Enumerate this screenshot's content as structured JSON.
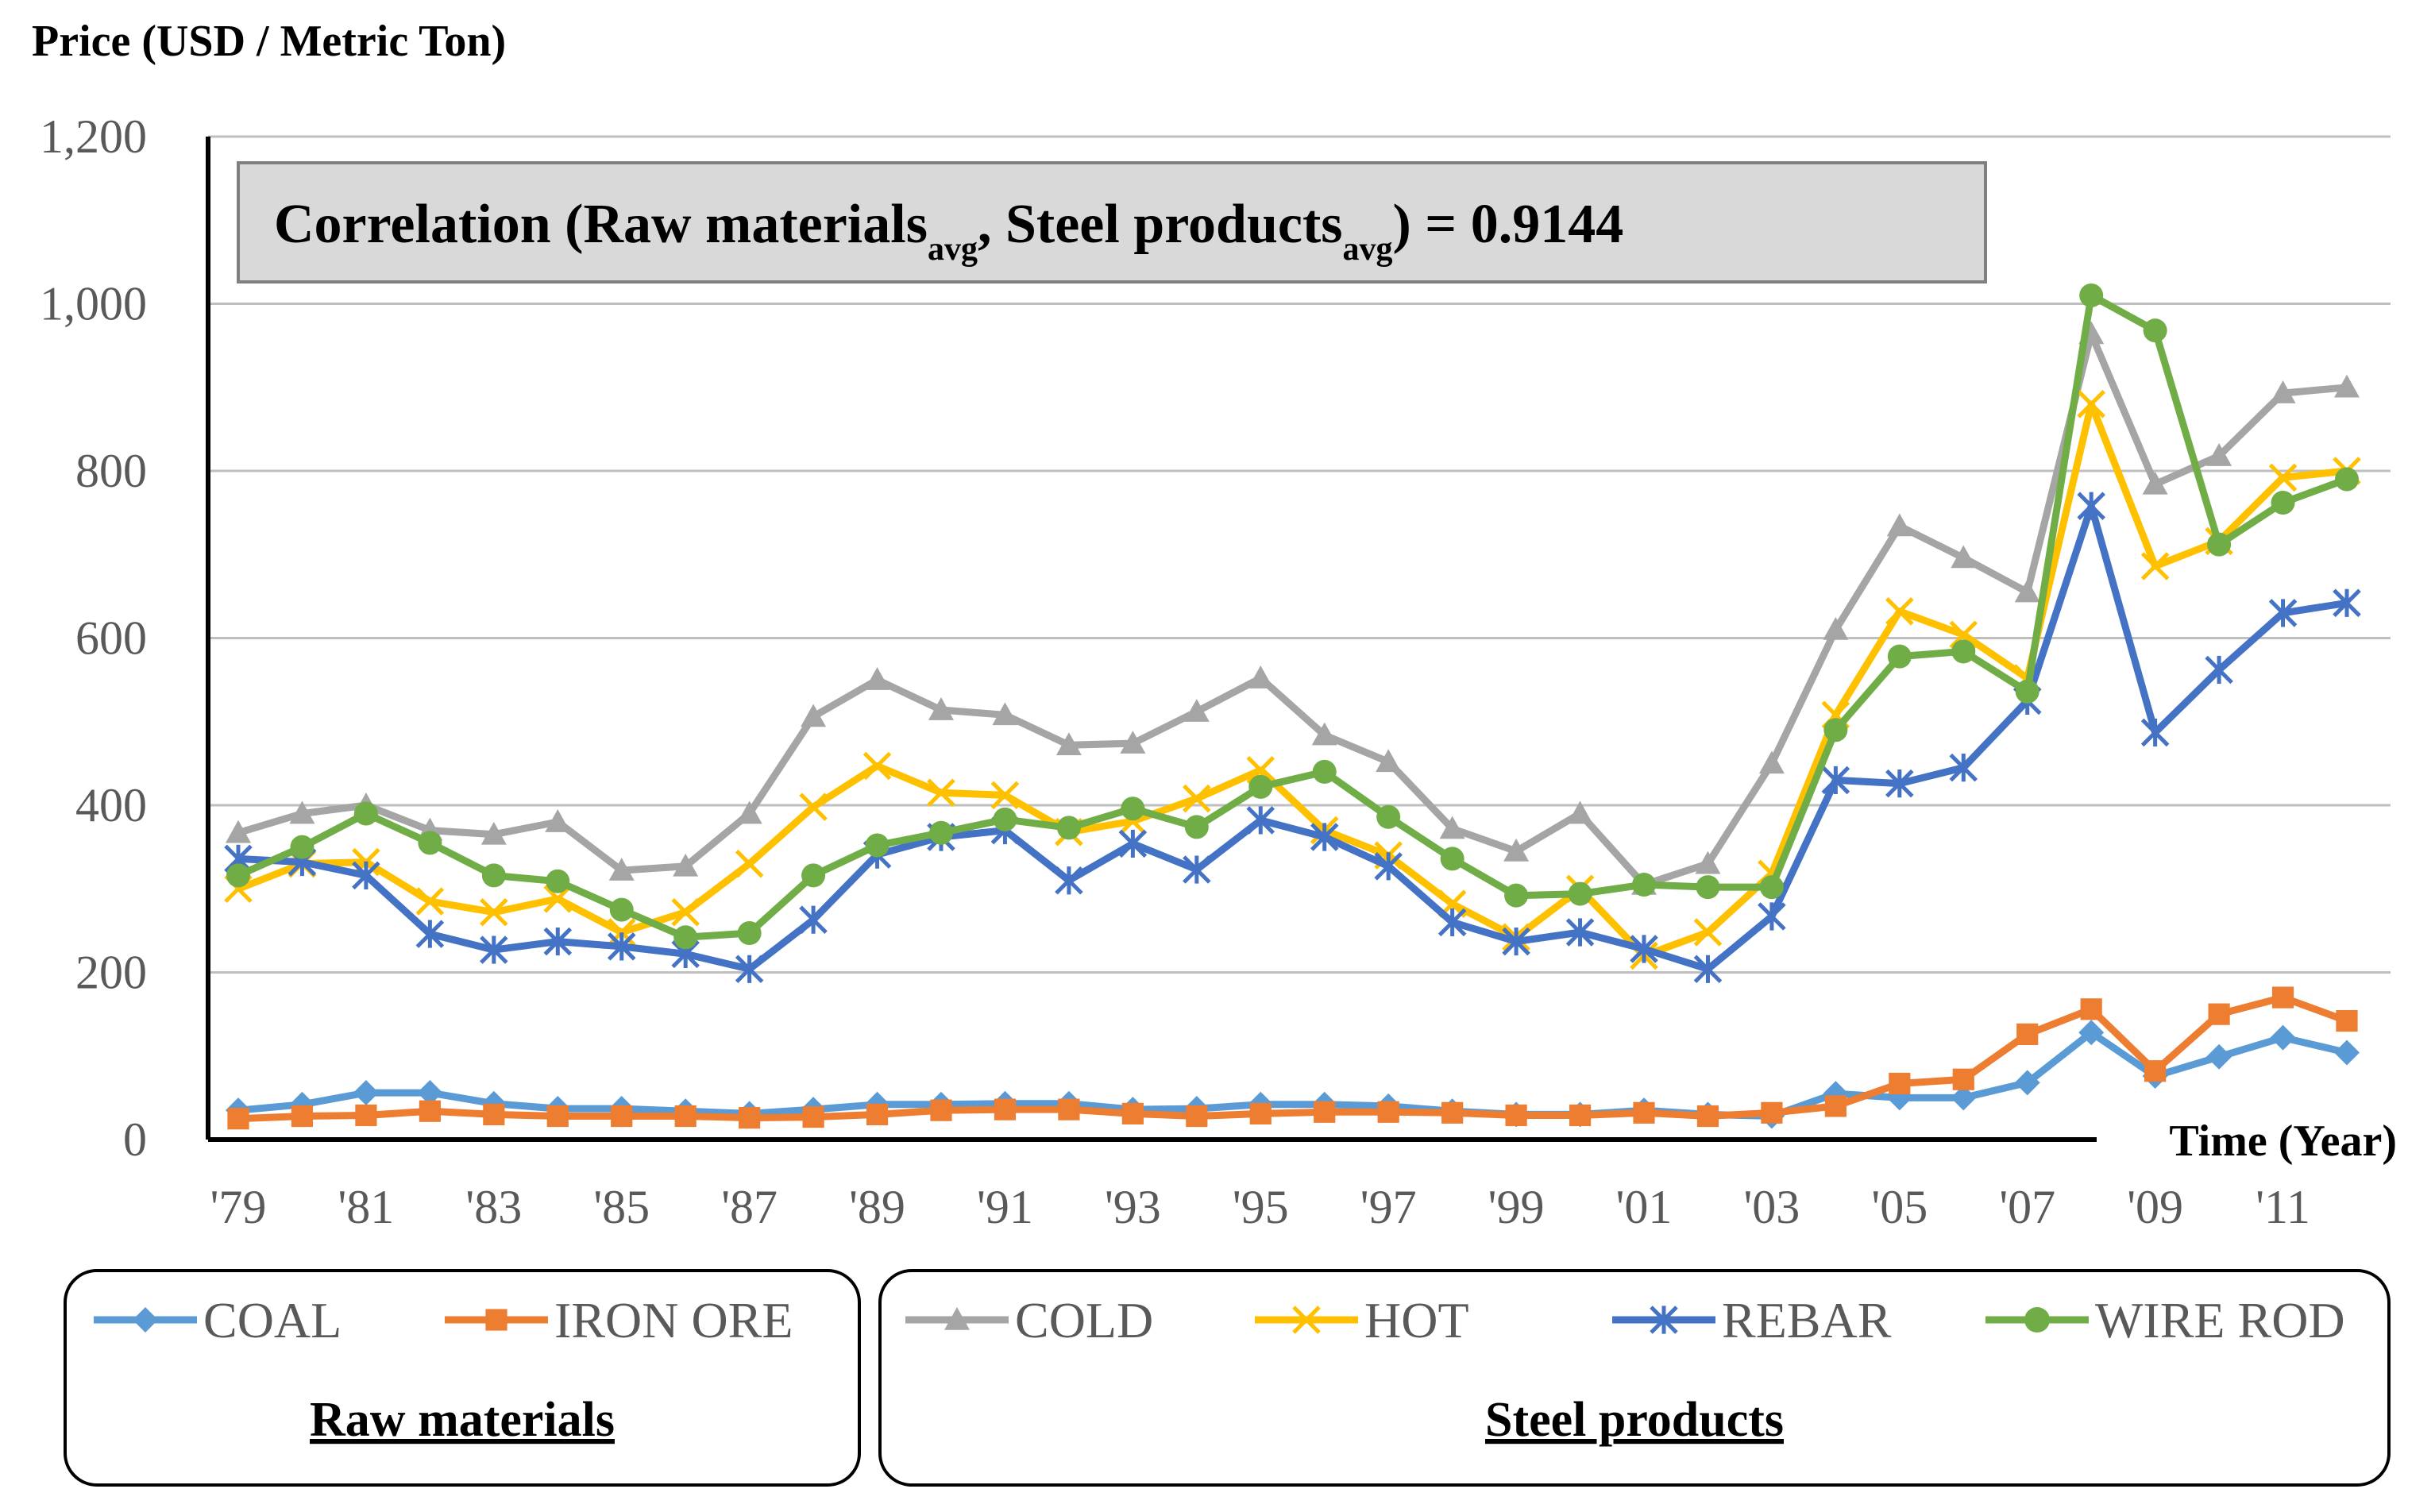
{
  "chart_data": {
    "type": "line",
    "ylabel": "Price (USD / Metric Ton)",
    "xlabel": "Time (Year)",
    "ylim": [
      0,
      1200
    ],
    "yticks": [
      0,
      200,
      400,
      600,
      800,
      1000,
      1200
    ],
    "ytick_labels": [
      "0",
      "200",
      "400",
      "600",
      "800",
      "1,000",
      "1,200"
    ],
    "x": [
      1979,
      1980,
      1981,
      1982,
      1983,
      1984,
      1985,
      1986,
      1987,
      1988,
      1989,
      1990,
      1991,
      1992,
      1993,
      1994,
      1995,
      1996,
      1997,
      1998,
      1999,
      2000,
      2001,
      2002,
      2003,
      2004,
      2005,
      2006,
      2007,
      2008,
      2009,
      2010,
      2011,
      2012
    ],
    "xtick_labels": [
      "'79",
      "'81",
      "'83",
      "'85",
      "'87",
      "'89",
      "'91",
      "'93",
      "'95",
      "'97",
      "'99",
      "'01",
      "'03",
      "'05",
      "'07",
      "'09",
      "'11"
    ],
    "grid": true,
    "correlation": {
      "prefix": "Correlation  (Raw materials",
      "sub1": "avg",
      "mid": ", Steel products",
      "sub2": "avg",
      "suffix": ") = 0.9144"
    },
    "series": [
      {
        "name": "COAL",
        "group": "raw",
        "color": "#5B9BD5",
        "marker": "diamond",
        "values": [
          35,
          42,
          56,
          56,
          43,
          37,
          37,
          34,
          31,
          36,
          42,
          42,
          43,
          43,
          36,
          37,
          42,
          42,
          40,
          34,
          30,
          30,
          35,
          30,
          28,
          55,
          50,
          50,
          68,
          128,
          76,
          99,
          122,
          104
        ]
      },
      {
        "name": "IRON ORE",
        "group": "raw",
        "color": "#ED7D31",
        "marker": "square",
        "values": [
          25,
          28,
          29,
          34,
          30,
          28,
          28,
          28,
          26,
          27,
          30,
          35,
          36,
          36,
          31,
          28,
          31,
          33,
          33,
          32,
          29,
          29,
          32,
          28,
          32,
          40,
          67,
          72,
          126,
          156,
          82,
          150,
          170,
          142
        ]
      },
      {
        "name": "COLD",
        "group": "steel",
        "color": "#A5A5A5",
        "marker": "triangle",
        "values": [
          367,
          390,
          400,
          370,
          365,
          380,
          322,
          327,
          390,
          506,
          550,
          514,
          508,
          472,
          474,
          512,
          552,
          484,
          452,
          372,
          345,
          390,
          305,
          330,
          450,
          610,
          734,
          696,
          655,
          964,
          784,
          818,
          893,
          900
        ]
      },
      {
        "name": "HOT",
        "group": "steel",
        "color": "#FFC000",
        "marker": "x",
        "values": [
          300,
          330,
          332,
          285,
          272,
          288,
          248,
          272,
          330,
          398,
          447,
          415,
          412,
          368,
          381,
          408,
          442,
          370,
          340,
          282,
          242,
          300,
          220,
          248,
          318,
          508,
          632,
          604,
          552,
          880,
          686,
          716,
          792,
          800
        ]
      },
      {
        "name": "REBAR",
        "group": "steel",
        "color": "#4472C4",
        "marker": "asterisk",
        "values": [
          336,
          332,
          316,
          246,
          227,
          237,
          231,
          222,
          204,
          263,
          341,
          362,
          370,
          310,
          354,
          323,
          382,
          362,
          327,
          260,
          237,
          248,
          228,
          204,
          267,
          430,
          426,
          445,
          525,
          758,
          487,
          562,
          630,
          642
        ]
      },
      {
        "name": "WIRE ROD",
        "group": "steel",
        "color": "#70AD47",
        "marker": "circle",
        "values": [
          316,
          350,
          390,
          355,
          316,
          309,
          275,
          242,
          247,
          316,
          352,
          367,
          383,
          373,
          396,
          374,
          422,
          440,
          386,
          336,
          292,
          294,
          305,
          302,
          302,
          490,
          578,
          584,
          536,
          1010,
          968,
          712,
          762,
          790
        ]
      }
    ]
  },
  "legend": {
    "groups": [
      {
        "title": "Raw materials",
        "items": [
          "COAL",
          "IRON ORE"
        ]
      },
      {
        "title": "Steel products",
        "items": [
          "COLD",
          "HOT",
          "REBAR",
          "WIRE ROD"
        ]
      }
    ]
  }
}
